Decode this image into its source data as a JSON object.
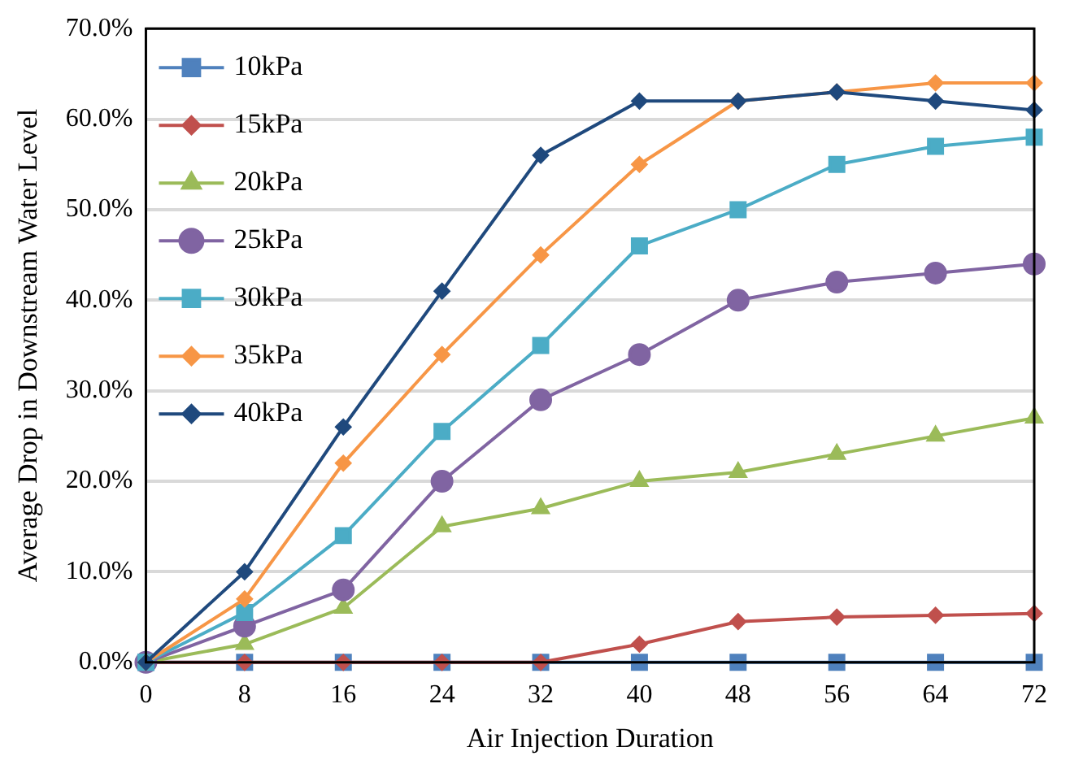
{
  "chart_data": {
    "type": "line",
    "xlabel": "Air Injection Duration",
    "ylabel": "Average Drop in Downstream Water Level",
    "categories": [
      "0",
      "8",
      "16",
      "24",
      "32",
      "40",
      "48",
      "56",
      "64",
      "72"
    ],
    "ylim": [
      0,
      70
    ],
    "yticks": [
      {
        "value": 0,
        "label": "0.0%"
      },
      {
        "value": 10,
        "label": "10.0%"
      },
      {
        "value": 20,
        "label": "20.0%"
      },
      {
        "value": 30,
        "label": "30.0%"
      },
      {
        "value": 40,
        "label": "40.0%"
      },
      {
        "value": 50,
        "label": "50.0%"
      },
      {
        "value": 60,
        "label": "60.0%"
      },
      {
        "value": 70,
        "label": "70.0%"
      }
    ],
    "grid": "y",
    "legend": "top left",
    "line_style": "solid",
    "series": [
      {
        "name": "10kPa",
        "color": "#4f81bd",
        "marker": "square",
        "values": [
          0,
          0,
          0,
          0,
          0,
          0,
          0,
          0,
          0,
          0
        ]
      },
      {
        "name": "15kPa",
        "color": "#c0504d",
        "marker": "diamond",
        "values": [
          0,
          0,
          0,
          0,
          0,
          2,
          4.5,
          5,
          5.2,
          5.4
        ]
      },
      {
        "name": "20kPa",
        "color": "#9bbb59",
        "marker": "triangle",
        "values": [
          0,
          2,
          6,
          15,
          17,
          20,
          21,
          23,
          25,
          27
        ]
      },
      {
        "name": "25kPa",
        "color": "#8064a2",
        "marker": "circle",
        "values": [
          0,
          4,
          8,
          20,
          29,
          34,
          40,
          42,
          43,
          44
        ]
      },
      {
        "name": "30kPa",
        "color": "#4bacc6",
        "marker": "square",
        "values": [
          0,
          5.5,
          14,
          25.5,
          35,
          46,
          50,
          55,
          57,
          58
        ]
      },
      {
        "name": "35kPa",
        "color": "#f79646",
        "marker": "diamond",
        "values": [
          0,
          7,
          22,
          34,
          45,
          55,
          62,
          63,
          64,
          64
        ]
      },
      {
        "name": "40kPa",
        "color": "#1f497d",
        "marker": "diamond",
        "values": [
          0,
          10,
          26,
          41,
          56,
          62,
          62,
          63,
          62,
          61
        ]
      }
    ]
  }
}
